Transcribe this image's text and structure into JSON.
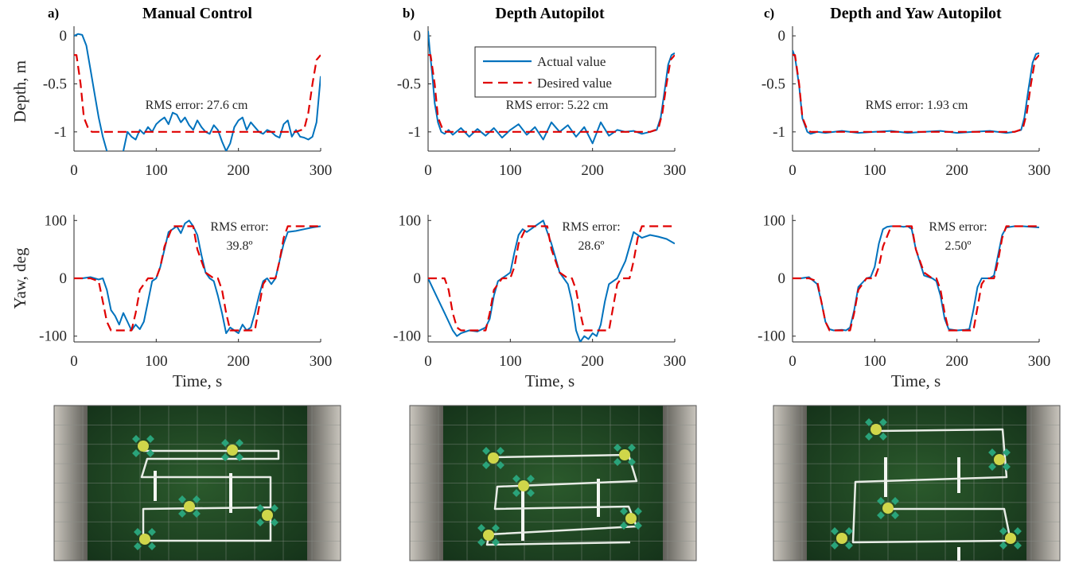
{
  "colors": {
    "actual": "#0072BD",
    "desired": "#E00000",
    "axis": "#262626",
    "tank_water": "#1d4a22",
    "path": "#e8ece6",
    "robot": "#cfd64a",
    "fin": "#2aa37a"
  },
  "axis_labels": {
    "depth_ylabel": "Depth, m",
    "yaw_ylabel": "Yaw, deg",
    "time_xlabel": "Time, s"
  },
  "legend": {
    "actual": "Actual value",
    "desired": "Desired value"
  },
  "panels": [
    {
      "letter": "a)",
      "title": "Manual Control",
      "depth_rms": "RMS error: 27.6 cm",
      "yaw_rms_line1": "RMS error:",
      "yaw_rms_line2": "39.8º"
    },
    {
      "letter": "b)",
      "title": "Depth Autopilot",
      "depth_rms": "RMS error: 5.22 cm",
      "yaw_rms_line1": "RMS error:",
      "yaw_rms_line2": "28.6º"
    },
    {
      "letter": "c)",
      "title": "Depth and Yaw Autopilot",
      "depth_rms": "RMS error: 1.93 cm",
      "yaw_rms_line1": "RMS error:",
      "yaw_rms_line2": "2.50º"
    }
  ],
  "chart_data": [
    {
      "type": "line",
      "panel": "a",
      "plot": "depth",
      "title": "Manual Control",
      "xlabel": "",
      "ylabel": "Depth, m",
      "xlim": [
        0,
        300
      ],
      "ylim": [
        -1.2,
        0.1
      ],
      "xticks": [
        0,
        100,
        200,
        300
      ],
      "yticks": [
        0,
        -0.5,
        -1
      ],
      "series": [
        {
          "name": "Actual value",
          "x": [
            0,
            5,
            10,
            15,
            20,
            25,
            30,
            35,
            40,
            45,
            50,
            55,
            60,
            65,
            70,
            75,
            80,
            85,
            90,
            95,
            100,
            105,
            110,
            115,
            120,
            125,
            130,
            135,
            140,
            145,
            150,
            155,
            160,
            165,
            170,
            175,
            180,
            185,
            190,
            195,
            200,
            205,
            210,
            215,
            220,
            225,
            230,
            235,
            240,
            245,
            250,
            255,
            260,
            265,
            270,
            275,
            280,
            285,
            290,
            295,
            300
          ],
          "y": [
            0,
            0.02,
            0.01,
            -0.1,
            -0.35,
            -0.6,
            -0.85,
            -1.05,
            -1.2,
            -1.3,
            -1.35,
            -1.3,
            -1.2,
            -1.0,
            -1.05,
            -1.08,
            -0.98,
            -1.02,
            -0.95,
            -1.0,
            -0.92,
            -0.88,
            -0.85,
            -0.92,
            -0.8,
            -0.82,
            -0.9,
            -0.85,
            -0.93,
            -0.98,
            -0.88,
            -0.95,
            -1.0,
            -1.02,
            -0.93,
            -0.98,
            -1.1,
            -1.2,
            -1.12,
            -0.95,
            -0.88,
            -0.85,
            -0.98,
            -0.9,
            -0.95,
            -1.0,
            -1.02,
            -0.98,
            -1.0,
            -1.04,
            -1.06,
            -0.92,
            -0.88,
            -1.05,
            -0.98,
            -1.05,
            -1.06,
            -1.08,
            -1.05,
            -0.9,
            -0.42
          ]
        },
        {
          "name": "Desired value",
          "x": [
            0,
            3,
            8,
            12,
            18,
            22,
            30,
            100,
            200,
            270,
            280,
            285,
            290,
            295,
            300
          ],
          "y": [
            -0.2,
            -0.2,
            -0.5,
            -0.85,
            -0.98,
            -1.0,
            -1.0,
            -1.0,
            -1.0,
            -1.0,
            -0.97,
            -0.8,
            -0.5,
            -0.25,
            -0.2
          ]
        }
      ]
    },
    {
      "type": "line",
      "panel": "b",
      "plot": "depth",
      "title": "Depth Autopilot",
      "xlabel": "",
      "ylabel": "",
      "xlim": [
        0,
        300
      ],
      "ylim": [
        -1.2,
        0.1
      ],
      "xticks": [
        0,
        100,
        200,
        300
      ],
      "yticks": [
        0,
        -0.5,
        -1
      ],
      "series": [
        {
          "name": "Actual value",
          "x": [
            0,
            2,
            5,
            8,
            12,
            16,
            20,
            25,
            30,
            40,
            50,
            60,
            70,
            80,
            90,
            100,
            110,
            120,
            130,
            140,
            150,
            160,
            170,
            180,
            190,
            200,
            210,
            220,
            230,
            240,
            250,
            260,
            270,
            278,
            283,
            288,
            292,
            296,
            300
          ],
          "y": [
            0.05,
            -0.15,
            -0.4,
            -0.7,
            -0.9,
            -1.0,
            -1.02,
            -0.98,
            -1.03,
            -0.96,
            -1.05,
            -0.97,
            -1.04,
            -0.96,
            -1.06,
            -0.98,
            -0.92,
            -1.03,
            -0.95,
            -1.08,
            -0.9,
            -1.0,
            -0.93,
            -1.05,
            -0.95,
            -1.12,
            -0.9,
            -1.04,
            -0.98,
            -1.0,
            -0.99,
            -1.02,
            -1.0,
            -0.98,
            -0.85,
            -0.55,
            -0.3,
            -0.2,
            -0.18
          ]
        },
        {
          "name": "Desired value",
          "x": [
            0,
            3,
            8,
            12,
            18,
            22,
            30,
            100,
            200,
            270,
            280,
            285,
            290,
            295,
            300
          ],
          "y": [
            -0.2,
            -0.2,
            -0.5,
            -0.85,
            -0.98,
            -1.0,
            -1.0,
            -1.0,
            -1.0,
            -1.0,
            -0.97,
            -0.8,
            -0.5,
            -0.25,
            -0.2
          ]
        }
      ]
    },
    {
      "type": "line",
      "panel": "c",
      "plot": "depth",
      "title": "Depth and Yaw Autopilot",
      "xlabel": "",
      "ylabel": "",
      "xlim": [
        0,
        300
      ],
      "ylim": [
        -1.2,
        0.1
      ],
      "xticks": [
        0,
        100,
        200,
        300
      ],
      "yticks": [
        0,
        -0.5,
        -1
      ],
      "series": [
        {
          "name": "Actual value",
          "x": [
            0,
            3,
            8,
            12,
            18,
            22,
            30,
            40,
            60,
            80,
            100,
            120,
            140,
            160,
            180,
            200,
            220,
            240,
            260,
            270,
            278,
            282,
            287,
            292,
            296,
            300
          ],
          "y": [
            -0.15,
            -0.22,
            -0.52,
            -0.86,
            -1.0,
            -1.02,
            -1.0,
            -1.01,
            -0.99,
            -1.01,
            -1.0,
            -0.99,
            -1.01,
            -1.0,
            -0.99,
            -1.01,
            -1.0,
            -0.99,
            -1.01,
            -1.0,
            -0.98,
            -0.85,
            -0.55,
            -0.28,
            -0.19,
            -0.18
          ]
        },
        {
          "name": "Desired value",
          "x": [
            0,
            3,
            8,
            12,
            18,
            22,
            30,
            100,
            200,
            270,
            280,
            285,
            290,
            295,
            300
          ],
          "y": [
            -0.2,
            -0.2,
            -0.5,
            -0.85,
            -0.98,
            -1.0,
            -1.0,
            -1.0,
            -1.0,
            -1.0,
            -0.97,
            -0.8,
            -0.5,
            -0.25,
            -0.2
          ]
        }
      ]
    },
    {
      "type": "line",
      "panel": "a",
      "plot": "yaw",
      "xlabel": "Time, s",
      "ylabel": "Yaw, deg",
      "xlim": [
        0,
        300
      ],
      "ylim": [
        -110,
        110
      ],
      "xticks": [
        0,
        100,
        200,
        300
      ],
      "yticks": [
        100,
        0,
        -100
      ],
      "series": [
        {
          "name": "Actual value",
          "x": [
            0,
            10,
            20,
            30,
            35,
            40,
            45,
            50,
            55,
            60,
            65,
            70,
            75,
            80,
            85,
            90,
            95,
            100,
            105,
            110,
            115,
            120,
            125,
            130,
            135,
            140,
            145,
            150,
            155,
            160,
            165,
            170,
            175,
            180,
            185,
            190,
            195,
            200,
            205,
            210,
            215,
            220,
            225,
            230,
            235,
            240,
            245,
            250,
            255,
            260,
            270,
            280,
            290,
            300
          ],
          "y": [
            0,
            0,
            2,
            -2,
            0,
            -20,
            -55,
            -65,
            -80,
            -60,
            -75,
            -90,
            -80,
            -88,
            -75,
            -40,
            -5,
            0,
            20,
            50,
            80,
            85,
            90,
            78,
            95,
            100,
            90,
            75,
            40,
            10,
            0,
            -5,
            -30,
            -60,
            -95,
            -85,
            -90,
            -95,
            -80,
            -90,
            -85,
            -60,
            -30,
            -5,
            0,
            -10,
            0,
            30,
            60,
            80,
            82,
            85,
            88,
            90
          ]
        },
        {
          "name": "Desired value",
          "x": [
            0,
            20,
            30,
            35,
            40,
            45,
            65,
            70,
            75,
            80,
            90,
            95,
            100,
            105,
            110,
            120,
            130,
            135,
            140,
            145,
            150,
            160,
            170,
            175,
            180,
            185,
            190,
            210,
            220,
            225,
            230,
            235,
            245,
            250,
            255,
            260,
            280,
            300
          ],
          "y": [
            0,
            0,
            -5,
            -40,
            -75,
            -90,
            -90,
            -90,
            -60,
            -20,
            0,
            0,
            0,
            20,
            55,
            90,
            90,
            90,
            90,
            90,
            50,
            10,
            0,
            0,
            -20,
            -60,
            -90,
            -90,
            -90,
            -50,
            -10,
            0,
            0,
            30,
            70,
            90,
            90,
            90
          ]
        }
      ]
    },
    {
      "type": "line",
      "panel": "b",
      "plot": "yaw",
      "xlabel": "Time, s",
      "ylabel": "",
      "xlim": [
        0,
        300
      ],
      "ylim": [
        -110,
        110
      ],
      "xticks": [
        0,
        100,
        200,
        300
      ],
      "yticks": [
        100,
        0,
        -100
      ],
      "series": [
        {
          "name": "Actual value",
          "x": [
            0,
            10,
            20,
            30,
            35,
            40,
            50,
            60,
            70,
            75,
            80,
            85,
            90,
            95,
            100,
            105,
            110,
            115,
            120,
            130,
            140,
            145,
            150,
            155,
            160,
            165,
            170,
            175,
            180,
            185,
            190,
            195,
            200,
            205,
            210,
            215,
            220,
            230,
            240,
            250,
            260,
            270,
            280,
            290,
            300
          ],
          "y": [
            0,
            -30,
            -60,
            -90,
            -100,
            -95,
            -90,
            -92,
            -85,
            -70,
            -30,
            -5,
            0,
            5,
            10,
            45,
            75,
            85,
            80,
            90,
            100,
            80,
            60,
            35,
            10,
            0,
            -10,
            -40,
            -90,
            -110,
            -100,
            -105,
            -95,
            -100,
            -80,
            -40,
            -10,
            0,
            30,
            80,
            70,
            75,
            72,
            68,
            60
          ]
        },
        {
          "name": "Desired value",
          "x": [
            0,
            20,
            25,
            30,
            35,
            40,
            65,
            70,
            75,
            80,
            90,
            95,
            100,
            105,
            110,
            120,
            130,
            135,
            140,
            145,
            150,
            160,
            170,
            175,
            180,
            185,
            190,
            210,
            220,
            225,
            230,
            235,
            245,
            250,
            255,
            260,
            280,
            300
          ],
          "y": [
            0,
            0,
            -20,
            -60,
            -85,
            -90,
            -90,
            -90,
            -60,
            -20,
            0,
            0,
            0,
            20,
            60,
            90,
            90,
            90,
            90,
            90,
            50,
            10,
            0,
            0,
            -20,
            -60,
            -90,
            -90,
            -90,
            -50,
            -10,
            0,
            0,
            30,
            70,
            90,
            90,
            90
          ]
        }
      ]
    },
    {
      "type": "line",
      "panel": "c",
      "plot": "yaw",
      "xlabel": "Time, s",
      "ylabel": "",
      "xlim": [
        0,
        300
      ],
      "ylim": [
        -110,
        110
      ],
      "xticks": [
        0,
        100,
        200,
        300
      ],
      "yticks": [
        100,
        0,
        -100
      ],
      "series": [
        {
          "name": "Actual value",
          "x": [
            0,
            10,
            20,
            30,
            35,
            40,
            45,
            50,
            60,
            65,
            70,
            75,
            80,
            90,
            95,
            100,
            105,
            110,
            115,
            120,
            130,
            135,
            140,
            145,
            150,
            160,
            170,
            175,
            180,
            185,
            190,
            200,
            210,
            215,
            220,
            225,
            230,
            240,
            245,
            250,
            255,
            260,
            270,
            280,
            290,
            300
          ],
          "y": [
            0,
            0,
            2,
            -10,
            -40,
            -75,
            -88,
            -90,
            -89,
            -90,
            -85,
            -55,
            -15,
            0,
            2,
            20,
            60,
            85,
            89,
            90,
            90,
            89,
            90,
            85,
            50,
            5,
            0,
            -5,
            -30,
            -70,
            -88,
            -90,
            -89,
            -88,
            -55,
            -15,
            0,
            0,
            5,
            40,
            75,
            88,
            90,
            90,
            89,
            88
          ]
        },
        {
          "name": "Desired value",
          "x": [
            0,
            20,
            30,
            35,
            40,
            45,
            65,
            70,
            75,
            80,
            90,
            95,
            100,
            105,
            110,
            120,
            130,
            135,
            140,
            145,
            150,
            160,
            170,
            175,
            180,
            185,
            190,
            210,
            220,
            225,
            230,
            235,
            245,
            250,
            255,
            260,
            280,
            300
          ],
          "y": [
            0,
            0,
            -5,
            -40,
            -75,
            -90,
            -90,
            -90,
            -60,
            -20,
            0,
            0,
            0,
            20,
            55,
            90,
            90,
            90,
            90,
            90,
            50,
            10,
            0,
            0,
            -20,
            -60,
            -90,
            -90,
            -90,
            -50,
            -10,
            0,
            0,
            30,
            70,
            90,
            90,
            90
          ]
        }
      ]
    }
  ],
  "photos": [
    {
      "panel": "a",
      "robots": 5
    },
    {
      "panel": "b",
      "robots": 5
    },
    {
      "panel": "c",
      "robots": 5
    }
  ]
}
